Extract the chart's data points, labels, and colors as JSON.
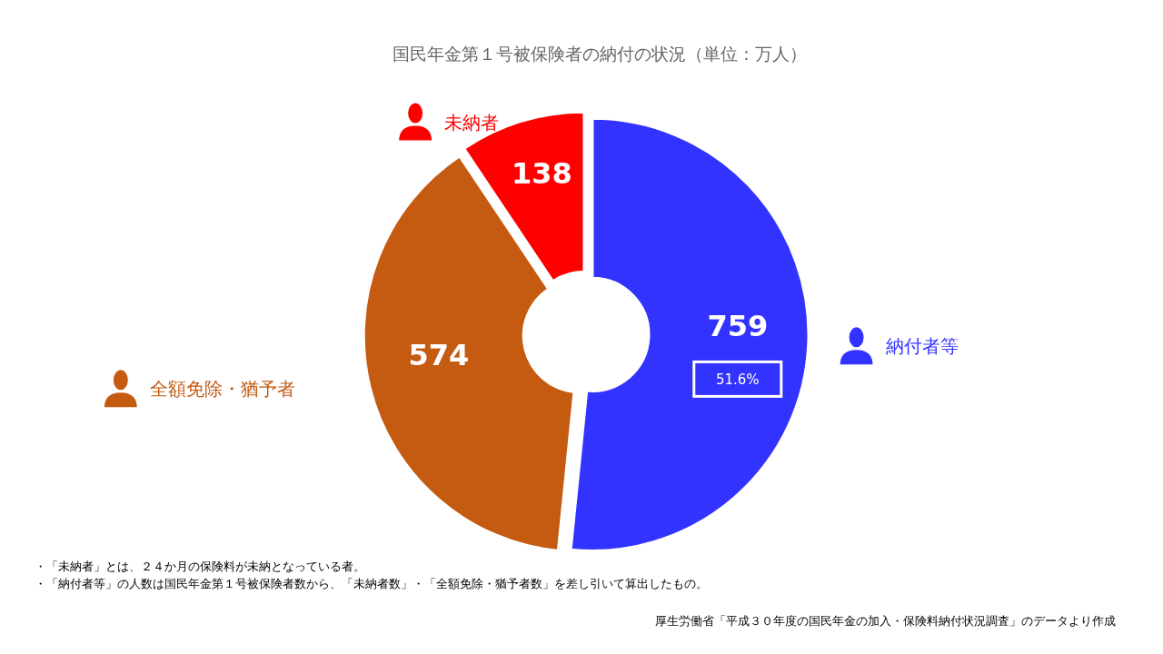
{
  "chart_data": {
    "type": "donut",
    "title": "国民年金第１号被保険者の納付の状況（単位：万人）",
    "categories": [
      "納付者等",
      "全額免除・猶予者",
      "未納者"
    ],
    "values": [
      759,
      574,
      138
    ],
    "colors": [
      "#3333ff",
      "#c55a11",
      "#ff0000"
    ],
    "data_labels": true,
    "legend": "top left",
    "annotations": [
      "51.6%",
      "・「未納者」とは、２４か月の保険料が未納となっている者。",
      "・「納付者等」の人数は国民年金第１号被保険者数から、「未納者数」・「全額免除・猶予者数」を差し引いて算出したもの。",
      "厚生労働省「平成３０年度の国民年金の加入・保険料納付状況調査」のデータより作成"
    ]
  }
}
